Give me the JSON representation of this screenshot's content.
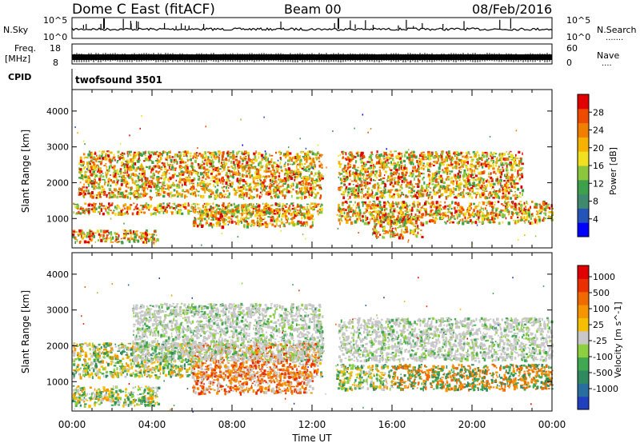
{
  "header": {
    "station": "Dome C East (fitACF)",
    "beam": "Beam 00",
    "date": "08/Feb/2016"
  },
  "strips": {
    "nsky_label": "N.Sky",
    "nsky_top": "10^5",
    "nsky_bottom": "10^0",
    "nsearch_label": "N.Search",
    "nsearch_dots": ".......",
    "nsearch_top": "10^5",
    "nsearch_bottom": "10^0",
    "freq_label": "Freq.",
    "freq_unit": "[MHz]",
    "freq_top": "18",
    "freq_bottom": "8",
    "nave_label": "Nave",
    "nave_dots": "....",
    "nave_top": "60",
    "nave_bottom": "0",
    "cpid_label": "CPID",
    "cpid_value": "twofsound 3501"
  },
  "chart_data": [
    {
      "type": "heatmap",
      "name": "power",
      "xlabel": "",
      "ylabel": "Slant Range [km]",
      "x_ticks": [
        "00:00",
        "04:00",
        "08:00",
        "12:00",
        "16:00",
        "20:00",
        "00:00"
      ],
      "y_ticks": [
        1000,
        2000,
        3000,
        4000
      ],
      "ylim": [
        180,
        4600
      ],
      "colorbar": {
        "label": "Power [dB]",
        "ticks": [
          "4",
          "8",
          "12",
          "16",
          "20",
          "24",
          "28"
        ],
        "colors": [
          "#0000ff",
          "#2454b8",
          "#3f8a6e",
          "#3da04a",
          "#8cc63f",
          "#f0e020",
          "#f5b200",
          "#f07f00",
          "#ee4a00",
          "#e00000"
        ]
      },
      "echo_bands": [
        {
          "t_start": 0.0,
          "t_end": 4.3,
          "range_start": 350,
          "range_end": 700
        },
        {
          "t_start": 0.0,
          "t_end": 12.5,
          "range_start": 1150,
          "range_end": 1450
        },
        {
          "t_start": 0.3,
          "t_end": 12.5,
          "range_start": 1600,
          "range_end": 2900
        },
        {
          "t_start": 6.0,
          "t_end": 12.0,
          "range_start": 800,
          "range_end": 1300
        },
        {
          "t_start": 13.2,
          "t_end": 24.0,
          "range_start": 900,
          "range_end": 1500
        },
        {
          "t_start": 15.0,
          "t_end": 17.5,
          "range_start": 500,
          "range_end": 1100
        },
        {
          "t_start": 13.3,
          "t_end": 22.5,
          "range_start": 1600,
          "range_end": 2900
        }
      ]
    },
    {
      "type": "heatmap",
      "name": "velocity",
      "xlabel": "Time UT",
      "ylabel": "Slant Range [km]",
      "x_ticks": [
        "00:00",
        "04:00",
        "08:00",
        "12:00",
        "16:00",
        "20:00",
        "00:00"
      ],
      "y_ticks": [
        1000,
        2000,
        3000,
        4000
      ],
      "ylim": [
        180,
        4600
      ],
      "colorbar": {
        "label": "Velocity [m s^-1]",
        "ticks": [
          "1000",
          "500",
          "100",
          "25",
          "-25",
          "-100",
          "-500",
          "-1000"
        ],
        "colors": [
          "#2040c0",
          "#2a6ea0",
          "#2f8a60",
          "#3fa850",
          "#8cd040",
          "#c8c8c8",
          "#f5c000",
          "#f59500",
          "#f06a00",
          "#e83000",
          "#e00000"
        ]
      },
      "echo_bands": [
        {
          "t_start": 0.0,
          "t_end": 4.3,
          "range_start": 350,
          "range_end": 900
        },
        {
          "t_start": 0.0,
          "t_end": 12.5,
          "range_start": 1150,
          "range_end": 2100
        },
        {
          "t_start": 3.0,
          "t_end": 12.5,
          "range_start": 1600,
          "range_end": 3200
        },
        {
          "t_start": 6.0,
          "t_end": 12.0,
          "range_start": 700,
          "range_end": 1300
        },
        {
          "t_start": 13.2,
          "t_end": 24.0,
          "range_start": 800,
          "range_end": 1500
        },
        {
          "t_start": 13.3,
          "t_end": 24.0,
          "range_start": 1600,
          "range_end": 2800
        }
      ]
    }
  ]
}
